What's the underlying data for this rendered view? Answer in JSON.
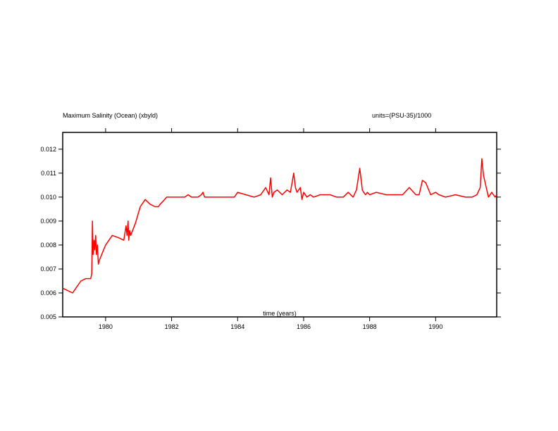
{
  "chart_data": {
    "type": "line",
    "title": "Maximum Salinity (Ocean) (xbyld)",
    "units": "units=(PSU-35)/1000",
    "xlabel": "time (years)",
    "ylabel": "",
    "xlim": [
      1978.7,
      1991.85
    ],
    "ylim": [
      0.005,
      0.0127
    ],
    "x_ticks": [
      1980,
      1982,
      1984,
      1986,
      1988,
      1990
    ],
    "x_tick_labels": [
      "1980",
      "1982",
      "1984",
      "1986",
      "1988",
      "1990"
    ],
    "y_ticks": [
      0.005,
      0.006,
      0.007,
      0.008,
      0.009,
      0.01,
      0.011,
      0.012
    ],
    "y_tick_labels": [
      "0.005",
      "0.006",
      "0.007",
      "0.008",
      "0.009",
      "0.010",
      "0.011",
      "0.012"
    ],
    "line_color": "#ff0000",
    "grid": false,
    "series": [
      {
        "x": [
          1978.7,
          1978.85,
          1979.0,
          1979.1,
          1979.25,
          1979.4,
          1979.55,
          1979.58,
          1979.6,
          1979.62,
          1979.65,
          1979.67,
          1979.7,
          1979.72,
          1979.75,
          1979.78,
          1979.82,
          1980.0,
          1980.2,
          1980.4,
          1980.55,
          1980.62,
          1980.65,
          1980.68,
          1980.7,
          1980.73,
          1980.76,
          1980.9,
          1981.05,
          1981.2,
          1981.35,
          1981.5,
          1981.6,
          1981.65,
          1981.72,
          1981.85,
          1982.2,
          1982.4,
          1982.5,
          1982.6,
          1982.8,
          1982.9,
          1982.95,
          1983.0,
          1983.5,
          1983.9,
          1984.0,
          1984.5,
          1984.7,
          1984.85,
          1984.95,
          1985.0,
          1985.05,
          1985.1,
          1985.2,
          1985.35,
          1985.5,
          1985.6,
          1985.7,
          1985.75,
          1985.8,
          1985.9,
          1985.95,
          1986.0,
          1986.1,
          1986.2,
          1986.3,
          1986.5,
          1986.8,
          1987.0,
          1987.2,
          1987.35,
          1987.5,
          1987.6,
          1987.7,
          1987.78,
          1987.82,
          1987.88,
          1987.93,
          1988.0,
          1988.2,
          1988.5,
          1988.8,
          1989.0,
          1989.2,
          1989.4,
          1989.5,
          1989.6,
          1989.7,
          1989.85,
          1990.0,
          1990.1,
          1990.3,
          1990.6,
          1990.9,
          1991.1,
          1991.25,
          1991.35,
          1991.4,
          1991.45,
          1991.5,
          1991.6,
          1991.7,
          1991.75,
          1991.8,
          1991.85
        ],
        "values": [
          0.0062,
          0.0061,
          0.006,
          0.0062,
          0.0065,
          0.0066,
          0.0066,
          0.0068,
          0.009,
          0.0076,
          0.0082,
          0.0078,
          0.0084,
          0.0076,
          0.008,
          0.0072,
          0.0074,
          0.008,
          0.0084,
          0.0083,
          0.0082,
          0.0088,
          0.0084,
          0.009,
          0.0082,
          0.0086,
          0.0084,
          0.0089,
          0.0096,
          0.0099,
          0.0097,
          0.0096,
          0.0096,
          0.0097,
          0.0098,
          0.01,
          0.01,
          0.01,
          0.0101,
          0.01,
          0.01,
          0.0101,
          0.0102,
          0.01,
          0.01,
          0.01,
          0.0102,
          0.01,
          0.0101,
          0.0104,
          0.0101,
          0.0108,
          0.01,
          0.0102,
          0.0103,
          0.0101,
          0.0103,
          0.0102,
          0.011,
          0.0104,
          0.0102,
          0.0104,
          0.0099,
          0.0102,
          0.01,
          0.0101,
          0.01,
          0.0101,
          0.0101,
          0.01,
          0.01,
          0.0102,
          0.01,
          0.0103,
          0.0112,
          0.0103,
          0.0102,
          0.0101,
          0.0102,
          0.0101,
          0.0102,
          0.0101,
          0.0101,
          0.0101,
          0.0104,
          0.0101,
          0.0101,
          0.0107,
          0.0106,
          0.0101,
          0.0102,
          0.0101,
          0.01,
          0.0101,
          0.01,
          0.01,
          0.0101,
          0.0104,
          0.0116,
          0.0109,
          0.0106,
          0.01,
          0.0102,
          0.0101,
          0.01,
          0.0101
        ]
      }
    ]
  }
}
